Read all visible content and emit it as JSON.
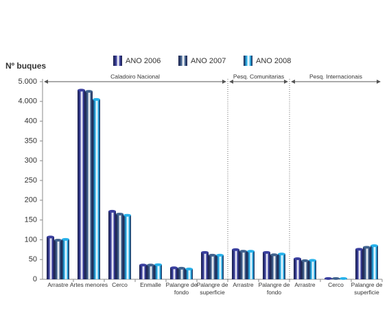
{
  "chart_data": {
    "type": "bar",
    "y_label": "Nº buques",
    "sections": [
      {
        "name": "Caladoiro Nacional",
        "categories": [
          "Arrastre",
          "Artes menores",
          "Cerco",
          "Enmalle",
          "Palangre de fondo",
          "Palangre de superficie"
        ]
      },
      {
        "name": "Pesq. Comunitarias",
        "categories": [
          "Arrastre",
          "Palangre de fondo"
        ]
      },
      {
        "name": "Pesq. Internacionais",
        "categories": [
          "Arrastre",
          "Cerco",
          "Palangre de superficie"
        ]
      }
    ],
    "series": [
      {
        "name": "ANO 2006",
        "color": "#3a3f9e",
        "values": [
          107,
          4570,
          172,
          36,
          29,
          68,
          75,
          68,
          52,
          2,
          76
        ]
      },
      {
        "name": "ANO 2007",
        "color": "#41638f",
        "values": [
          99,
          4510,
          165,
          36,
          28,
          61,
          71,
          62,
          47,
          2,
          81
        ]
      },
      {
        "name": "ANO 2008",
        "color": "#27b1ea",
        "values": [
          101,
          4100,
          162,
          37,
          26,
          61,
          71,
          64,
          48,
          2,
          85
        ]
      }
    ],
    "ylim": [
      0,
      5000
    ],
    "yticks": [
      0,
      50,
      100,
      150,
      200,
      250,
      300,
      350,
      400,
      {
        "value": 4000,
        "label": "4.000"
      },
      {
        "value": 5000,
        "label": "5.000"
      }
    ]
  }
}
